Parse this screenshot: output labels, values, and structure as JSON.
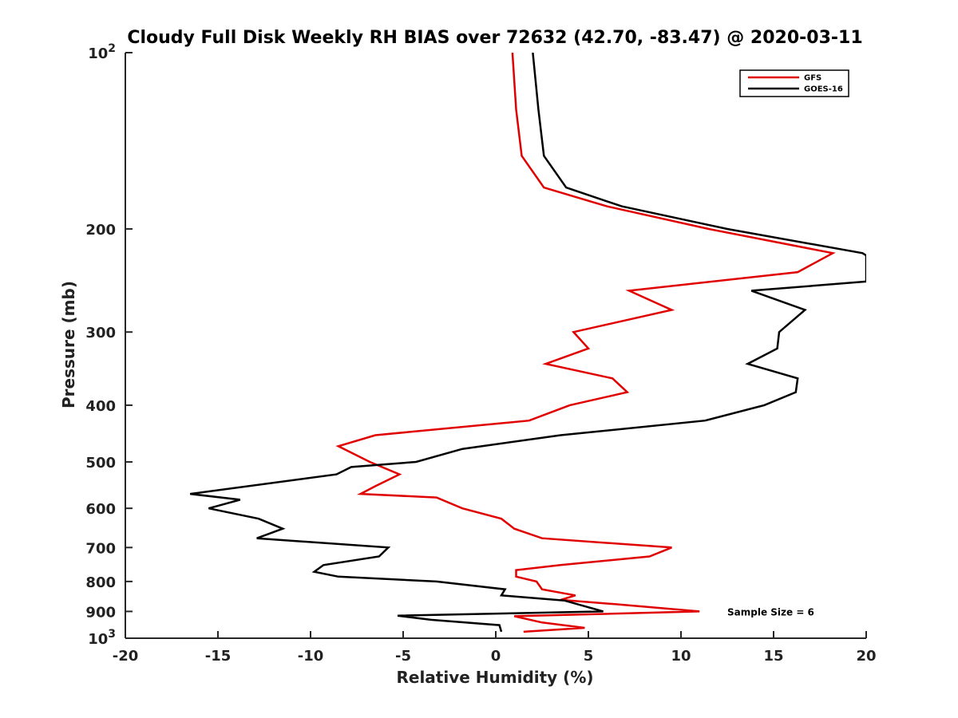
{
  "chart_data": {
    "type": "line",
    "title": "Cloudy Full Disk Weekly RH BIAS over 72632 (42.70, -83.47) @ 2020-03-11",
    "xlabel": "Relative Humidity (%)",
    "ylabel": "Pressure (mb)",
    "xlim": [
      -20,
      20
    ],
    "ylim": [
      100,
      1000
    ],
    "y_scale": "log",
    "y_reversed": true,
    "grid": false,
    "legend_position": "top-right",
    "x_tick_labels": [
      "-20",
      "-15",
      "-10",
      "-5",
      "0",
      "5",
      "10",
      "15",
      "20"
    ],
    "y_tick_labels": [
      {
        "value": 100,
        "label": "10",
        "sup": "2"
      },
      {
        "value": 200,
        "label": "200",
        "sup": ""
      },
      {
        "value": 300,
        "label": "300",
        "sup": ""
      },
      {
        "value": 400,
        "label": "400",
        "sup": ""
      },
      {
        "value": 500,
        "label": "500",
        "sup": ""
      },
      {
        "value": 600,
        "label": "600",
        "sup": ""
      },
      {
        "value": 700,
        "label": "700",
        "sup": ""
      },
      {
        "value": 800,
        "label": "800",
        "sup": ""
      },
      {
        "value": 900,
        "label": "900",
        "sup": ""
      },
      {
        "value": 1000,
        "label": "10",
        "sup": "3"
      }
    ],
    "series": [
      {
        "name": "GFS",
        "color": "#e00000",
        "points": [
          [
            0.9,
            100
          ],
          [
            1.1,
            125
          ],
          [
            1.4,
            150
          ],
          [
            2.6,
            170
          ],
          [
            6.0,
            183
          ],
          [
            11.5,
            200
          ],
          [
            18.2,
            220
          ],
          [
            16.3,
            237
          ],
          [
            7.2,
            255
          ],
          [
            9.5,
            275
          ],
          [
            4.2,
            300
          ],
          [
            5.0,
            320
          ],
          [
            2.7,
            340
          ],
          [
            6.3,
            360
          ],
          [
            7.1,
            380
          ],
          [
            4.0,
            400
          ],
          [
            1.8,
            425
          ],
          [
            -6.5,
            450
          ],
          [
            -8.5,
            470
          ],
          [
            -6.8,
            500
          ],
          [
            -5.2,
            525
          ],
          [
            -6.5,
            550
          ],
          [
            -7.3,
            567
          ],
          [
            -3.2,
            575
          ],
          [
            -1.8,
            600
          ],
          [
            0.3,
            625
          ],
          [
            1.0,
            650
          ],
          [
            2.5,
            675
          ],
          [
            9.5,
            700
          ],
          [
            8.3,
            725
          ],
          [
            3.5,
            750
          ],
          [
            1.1,
            765
          ],
          [
            1.1,
            785
          ],
          [
            2.2,
            800
          ],
          [
            2.5,
            825
          ],
          [
            4.3,
            845
          ],
          [
            3.5,
            860
          ],
          [
            6.5,
            875
          ],
          [
            11.0,
            900
          ],
          [
            1.0,
            917
          ],
          [
            2.5,
            940
          ],
          [
            4.8,
            960
          ],
          [
            1.5,
            975
          ]
        ]
      },
      {
        "name": "GOES-16",
        "color": "#000000",
        "points": [
          [
            2.0,
            100
          ],
          [
            2.3,
            125
          ],
          [
            2.6,
            150
          ],
          [
            3.8,
            170
          ],
          [
            6.8,
            183
          ],
          [
            12.5,
            200
          ],
          [
            19.8,
            220
          ],
          [
            20.0,
            222
          ],
          [
            20.0,
            246
          ],
          [
            13.8,
            255
          ],
          [
            16.7,
            275
          ],
          [
            15.3,
            300
          ],
          [
            15.2,
            320
          ],
          [
            13.6,
            340
          ],
          [
            16.3,
            360
          ],
          [
            16.2,
            380
          ],
          [
            14.5,
            400
          ],
          [
            11.3,
            425
          ],
          [
            3.5,
            450
          ],
          [
            -1.8,
            475
          ],
          [
            -4.3,
            500
          ],
          [
            -7.8,
            510
          ],
          [
            -8.6,
            525
          ],
          [
            -16.5,
            567
          ],
          [
            -13.8,
            580
          ],
          [
            -15.5,
            600
          ],
          [
            -12.8,
            625
          ],
          [
            -11.5,
            650
          ],
          [
            -12.9,
            675
          ],
          [
            -5.8,
            700
          ],
          [
            -6.3,
            725
          ],
          [
            -9.3,
            750
          ],
          [
            -9.8,
            770
          ],
          [
            -8.5,
            785
          ],
          [
            -3.2,
            800
          ],
          [
            0.5,
            825
          ],
          [
            0.3,
            845
          ],
          [
            3.7,
            862
          ],
          [
            5.8,
            900
          ],
          [
            -5.3,
            915
          ],
          [
            -3.5,
            930
          ],
          [
            0.2,
            950
          ],
          [
            0.3,
            975
          ]
        ]
      }
    ],
    "annotations": [
      {
        "text": "Sample Size = 6",
        "x": 12.5,
        "y": 900
      }
    ]
  }
}
